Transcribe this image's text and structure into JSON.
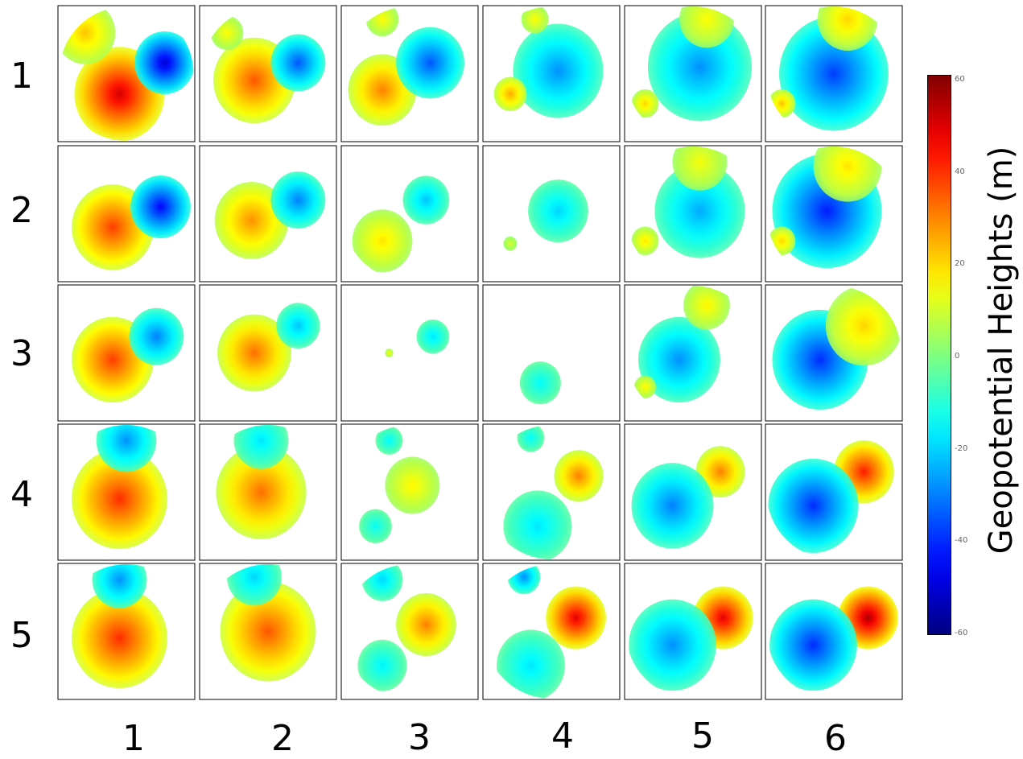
{
  "row_labels": [
    "1",
    "2",
    "3",
    "4",
    "5"
  ],
  "col_labels": [
    "1",
    "2",
    "3",
    "4",
    "5",
    "6"
  ],
  "colorbar": {
    "title": "Geopotential Heights (m)",
    "ticks": [
      60,
      40,
      20,
      0,
      -20,
      -40,
      -60
    ],
    "range": [
      -60,
      60
    ],
    "colormap": "jet"
  },
  "chart_data": {
    "type": "heatmap",
    "description_units": "Geopotential height anomaly (m), polar projection maps arranged 5 rows x 6 columns",
    "rows": 5,
    "cols": 6,
    "vmin": -60,
    "vmax": 60,
    "panels": [
      [
        {
          "blobs": [
            {
              "u": 0.45,
              "v": 0.65,
              "val": 50,
              "r": 0.33
            },
            {
              "u": 0.2,
              "v": 0.2,
              "val": 22,
              "r": 0.22
            },
            {
              "u": 0.78,
              "v": 0.42,
              "val": -50,
              "r": 0.22
            }
          ]
        },
        {
          "blobs": [
            {
              "u": 0.4,
              "v": 0.55,
              "val": 35,
              "r": 0.3
            },
            {
              "u": 0.2,
              "v": 0.2,
              "val": 15,
              "r": 0.12
            },
            {
              "u": 0.72,
              "v": 0.42,
              "val": -35,
              "r": 0.2
            }
          ]
        },
        {
          "blobs": [
            {
              "u": 0.3,
              "v": 0.62,
              "val": 30,
              "r": 0.25
            },
            {
              "u": 0.65,
              "v": 0.42,
              "val": -35,
              "r": 0.25
            },
            {
              "u": 0.3,
              "v": 0.1,
              "val": 15,
              "r": 0.12
            }
          ]
        },
        {
          "blobs": [
            {
              "u": 0.55,
              "v": 0.48,
              "val": -28,
              "r": 0.33
            },
            {
              "u": 0.2,
              "v": 0.65,
              "val": 25,
              "r": 0.12
            },
            {
              "u": 0.38,
              "v": 0.1,
              "val": 15,
              "r": 0.1
            }
          ]
        },
        {
          "blobs": [
            {
              "u": 0.55,
              "v": 0.45,
              "val": -28,
              "r": 0.38
            },
            {
              "u": 0.6,
              "v": 0.1,
              "val": 15,
              "r": 0.2
            },
            {
              "u": 0.15,
              "v": 0.72,
              "val": 20,
              "r": 0.1
            }
          ]
        },
        {
          "blobs": [
            {
              "u": 0.5,
              "v": 0.5,
              "val": -38,
              "r": 0.4
            },
            {
              "u": 0.6,
              "v": 0.1,
              "val": 20,
              "r": 0.22
            },
            {
              "u": 0.12,
              "v": 0.72,
              "val": 22,
              "r": 0.1
            }
          ]
        }
      ],
      [
        {
          "blobs": [
            {
              "u": 0.4,
              "v": 0.6,
              "val": 38,
              "r": 0.3
            },
            {
              "u": 0.75,
              "v": 0.45,
              "val": -45,
              "r": 0.22
            }
          ]
        },
        {
          "blobs": [
            {
              "u": 0.38,
              "v": 0.55,
              "val": 28,
              "r": 0.27
            },
            {
              "u": 0.72,
              "v": 0.4,
              "val": -30,
              "r": 0.2
            }
          ]
        },
        {
          "blobs": [
            {
              "u": 0.3,
              "v": 0.7,
              "val": 18,
              "r": 0.22
            },
            {
              "u": 0.62,
              "v": 0.4,
              "val": -22,
              "r": 0.17
            }
          ]
        },
        {
          "blobs": [
            {
              "u": 0.55,
              "v": 0.48,
              "val": -20,
              "r": 0.22
            },
            {
              "u": 0.2,
              "v": 0.72,
              "val": 10,
              "r": 0.05
            }
          ]
        },
        {
          "blobs": [
            {
              "u": 0.55,
              "v": 0.48,
              "val": -25,
              "r": 0.33
            },
            {
              "u": 0.55,
              "v": 0.12,
              "val": 14,
              "r": 0.2
            },
            {
              "u": 0.15,
              "v": 0.7,
              "val": 18,
              "r": 0.1
            }
          ]
        },
        {
          "blobs": [
            {
              "u": 0.45,
              "v": 0.48,
              "val": -42,
              "r": 0.4
            },
            {
              "u": 0.6,
              "v": 0.15,
              "val": 18,
              "r": 0.25
            },
            {
              "u": 0.12,
              "v": 0.7,
              "val": 20,
              "r": 0.1
            }
          ]
        }
      ],
      [
        {
          "blobs": [
            {
              "u": 0.4,
              "v": 0.55,
              "val": 38,
              "r": 0.3
            },
            {
              "u": 0.72,
              "v": 0.38,
              "val": -30,
              "r": 0.2
            }
          ]
        },
        {
          "blobs": [
            {
              "u": 0.4,
              "v": 0.5,
              "val": 32,
              "r": 0.27
            },
            {
              "u": 0.72,
              "v": 0.3,
              "val": -22,
              "r": 0.16
            }
          ]
        },
        {
          "blobs": [
            {
              "u": 0.67,
              "v": 0.38,
              "val": -18,
              "r": 0.12
            },
            {
              "u": 0.35,
              "v": 0.5,
              "val": 15,
              "r": 0.03
            }
          ]
        },
        {
          "blobs": [
            {
              "u": 0.42,
              "v": 0.72,
              "val": -15,
              "r": 0.15
            }
          ]
        },
        {
          "blobs": [
            {
              "u": 0.4,
              "v": 0.55,
              "val": -28,
              "r": 0.3
            },
            {
              "u": 0.6,
              "v": 0.15,
              "val": 16,
              "r": 0.17
            },
            {
              "u": 0.15,
              "v": 0.75,
              "val": 16,
              "r": 0.08
            }
          ]
        },
        {
          "blobs": [
            {
              "u": 0.4,
              "v": 0.55,
              "val": -40,
              "r": 0.35
            },
            {
              "u": 0.72,
              "v": 0.3,
              "val": 20,
              "r": 0.28
            }
          ]
        }
      ],
      [
        {
          "blobs": [
            {
              "u": 0.45,
              "v": 0.55,
              "val": 40,
              "r": 0.35
            },
            {
              "u": 0.5,
              "v": 0.12,
              "val": -28,
              "r": 0.22
            }
          ]
        },
        {
          "blobs": [
            {
              "u": 0.45,
              "v": 0.5,
              "val": 32,
              "r": 0.33
            },
            {
              "u": 0.45,
              "v": 0.12,
              "val": -18,
              "r": 0.2
            }
          ]
        },
        {
          "blobs": [
            {
              "u": 0.52,
              "v": 0.45,
              "val": 16,
              "r": 0.2
            },
            {
              "u": 0.35,
              "v": 0.12,
              "val": -15,
              "r": 0.1
            },
            {
              "u": 0.25,
              "v": 0.75,
              "val": -14,
              "r": 0.12
            }
          ]
        },
        {
          "blobs": [
            {
              "u": 0.7,
              "v": 0.38,
              "val": 30,
              "r": 0.18
            },
            {
              "u": 0.4,
              "v": 0.75,
              "val": -18,
              "r": 0.25
            },
            {
              "u": 0.35,
              "v": 0.1,
              "val": -15,
              "r": 0.1
            }
          ]
        },
        {
          "blobs": [
            {
              "u": 0.7,
              "v": 0.35,
              "val": 30,
              "r": 0.18
            },
            {
              "u": 0.35,
              "v": 0.6,
              "val": -30,
              "r": 0.3
            }
          ]
        },
        {
          "blobs": [
            {
              "u": 0.72,
              "v": 0.35,
              "val": 42,
              "r": 0.22
            },
            {
              "u": 0.35,
              "v": 0.6,
              "val": -40,
              "r": 0.33
            }
          ]
        }
      ],
      [
        {
          "blobs": [
            {
              "u": 0.45,
              "v": 0.55,
              "val": 40,
              "r": 0.35
            },
            {
              "u": 0.45,
              "v": 0.12,
              "val": -28,
              "r": 0.2
            }
          ]
        },
        {
          "blobs": [
            {
              "u": 0.5,
              "v": 0.5,
              "val": 35,
              "r": 0.35
            },
            {
              "u": 0.4,
              "v": 0.1,
              "val": -20,
              "r": 0.2
            }
          ]
        },
        {
          "blobs": [
            {
              "u": 0.62,
              "v": 0.45,
              "val": 30,
              "r": 0.22
            },
            {
              "u": 0.3,
              "v": 0.12,
              "val": -20,
              "r": 0.15
            },
            {
              "u": 0.3,
              "v": 0.75,
              "val": -16,
              "r": 0.18
            }
          ]
        },
        {
          "blobs": [
            {
              "u": 0.68,
              "v": 0.4,
              "val": 48,
              "r": 0.22
            },
            {
              "u": 0.35,
              "v": 0.75,
              "val": -18,
              "r": 0.25
            },
            {
              "u": 0.3,
              "v": 0.1,
              "val": -28,
              "r": 0.12
            }
          ]
        },
        {
          "blobs": [
            {
              "u": 0.72,
              "v": 0.4,
              "val": 48,
              "r": 0.22
            },
            {
              "u": 0.35,
              "v": 0.6,
              "val": -28,
              "r": 0.32
            }
          ]
        },
        {
          "blobs": [
            {
              "u": 0.75,
              "v": 0.4,
              "val": 55,
              "r": 0.22
            },
            {
              "u": 0.35,
              "v": 0.6,
              "val": -40,
              "r": 0.32
            }
          ]
        }
      ]
    ]
  }
}
